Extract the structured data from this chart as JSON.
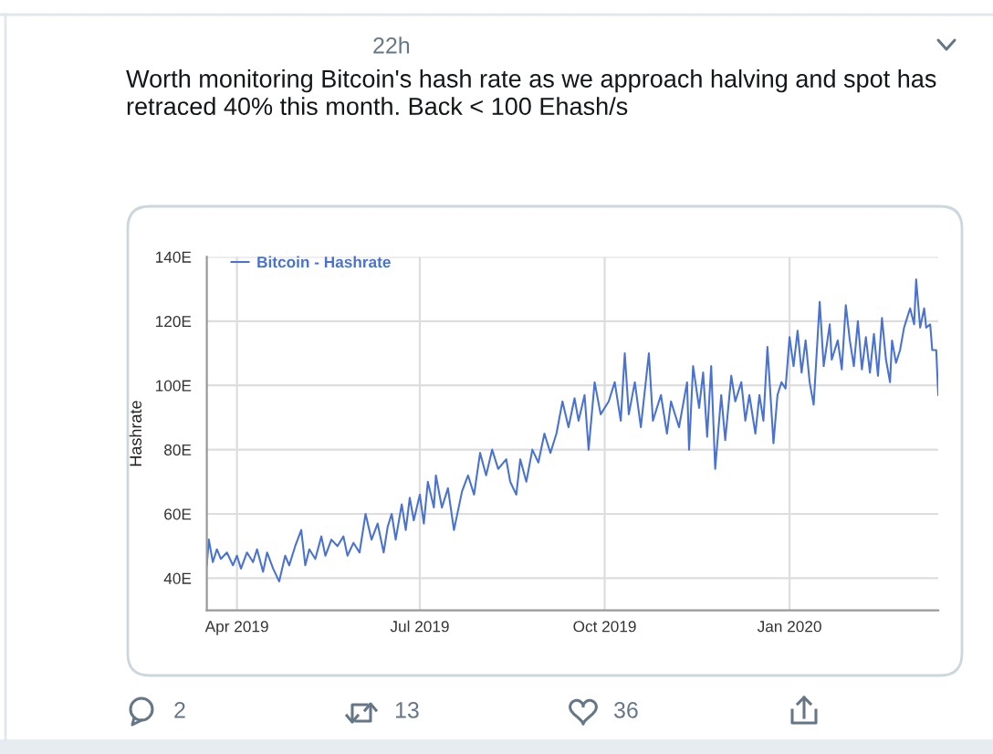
{
  "chart_data": {
    "type": "line",
    "title": "Worth monitoring Bitcoin's hash rate as we approach halving and spot has retraced 40% this month. Back < 100 Ehash/s",
    "ylabel": "Hashrate",
    "annotations": [
      "22h",
      "2",
      "13",
      "36"
    ],
    "legend": "top left",
    "grid": true,
    "xlim": [
      "2019-03-17",
      "2020-03-15"
    ],
    "xticks": [
      {
        "value": "2019-04-01",
        "label": "Apr 2019"
      },
      {
        "value": "2019-07-01",
        "label": "Jul 2019"
      },
      {
        "value": "2019-10-01",
        "label": "Oct 2019"
      },
      {
        "value": "2020-01-01",
        "label": "Jan 2020"
      }
    ],
    "ylim": [
      30,
      140
    ],
    "yticks": [
      {
        "value": 40,
        "label": "40E"
      },
      {
        "value": 60,
        "label": "60E"
      },
      {
        "value": 80,
        "label": "80E"
      },
      {
        "value": 100,
        "label": "100E"
      },
      {
        "value": 120,
        "label": "120E"
      },
      {
        "value": 140,
        "label": "140E"
      }
    ],
    "x": [
      "2019-03-17",
      "2019-03-18",
      "2019-03-20",
      "2019-03-22",
      "2019-03-24",
      "2019-03-27",
      "2019-03-30",
      "2019-04-01",
      "2019-04-03",
      "2019-04-06",
      "2019-04-09",
      "2019-04-11",
      "2019-04-14",
      "2019-04-16",
      "2019-04-19",
      "2019-04-22",
      "2019-04-25",
      "2019-04-27",
      "2019-04-30",
      "2019-05-03",
      "2019-05-05",
      "2019-05-07",
      "2019-05-10",
      "2019-05-13",
      "2019-05-15",
      "2019-05-18",
      "2019-05-21",
      "2019-05-24",
      "2019-05-26",
      "2019-05-29",
      "2019-06-01",
      "2019-06-04",
      "2019-06-07",
      "2019-06-10",
      "2019-06-13",
      "2019-06-15",
      "2019-06-17",
      "2019-06-19",
      "2019-06-22",
      "2019-06-24",
      "2019-06-26",
      "2019-06-28",
      "2019-07-01",
      "2019-07-03",
      "2019-07-05",
      "2019-07-08",
      "2019-07-09",
      "2019-07-12",
      "2019-07-15",
      "2019-07-18",
      "2019-07-22",
      "2019-07-25",
      "2019-07-28",
      "2019-07-31",
      "2019-08-03",
      "2019-08-06",
      "2019-08-09",
      "2019-08-13",
      "2019-08-15",
      "2019-08-18",
      "2019-08-20",
      "2019-08-23",
      "2019-08-26",
      "2019-08-29",
      "2019-09-01",
      "2019-09-04",
      "2019-09-07",
      "2019-09-10",
      "2019-09-13",
      "2019-09-16",
      "2019-09-18",
      "2019-09-21",
      "2019-09-23",
      "2019-09-26",
      "2019-09-29",
      "2019-10-03",
      "2019-10-06",
      "2019-10-09",
      "2019-10-11",
      "2019-10-13",
      "2019-10-16",
      "2019-10-19",
      "2019-10-23",
      "2019-10-25",
      "2019-10-29",
      "2019-11-01",
      "2019-11-03",
      "2019-11-07",
      "2019-11-11",
      "2019-11-12",
      "2019-11-14",
      "2019-11-17",
      "2019-11-19",
      "2019-11-21",
      "2019-11-23",
      "2019-11-25",
      "2019-11-28",
      "2019-11-30",
      "2019-12-03",
      "2019-12-05",
      "2019-12-08",
      "2019-12-10",
      "2019-12-12",
      "2019-12-15",
      "2019-12-17",
      "2019-12-19",
      "2019-12-21",
      "2019-12-24",
      "2019-12-26",
      "2019-12-28",
      "2019-12-30",
      "2020-01-01",
      "2020-01-03",
      "2020-01-05",
      "2020-01-07",
      "2020-01-09",
      "2020-01-11",
      "2020-01-13",
      "2020-01-16",
      "2020-01-18",
      "2020-01-21",
      "2020-01-22",
      "2020-01-25",
      "2020-01-27",
      "2020-01-29",
      "2020-01-31",
      "2020-02-02",
      "2020-02-04",
      "2020-02-06",
      "2020-02-08",
      "2020-02-10",
      "2020-02-12",
      "2020-02-14",
      "2020-02-16",
      "2020-02-18",
      "2020-02-20",
      "2020-02-21",
      "2020-02-23",
      "2020-02-25",
      "2020-02-27",
      "2020-03-01",
      "2020-03-03",
      "2020-03-04",
      "2020-03-06",
      "2020-03-08",
      "2020-03-09",
      "2020-03-11",
      "2020-03-12",
      "2020-03-14",
      "2020-03-15"
    ],
    "series": [
      {
        "name": "Bitcoin - Hashrate",
        "color": "#4a73d1",
        "values": [
          44,
          52,
          45,
          49,
          46,
          48,
          44,
          47,
          43,
          48,
          45,
          49,
          42,
          48,
          43,
          39,
          47,
          44,
          50,
          55,
          44,
          49,
          46,
          53,
          47,
          52,
          50,
          53,
          47,
          51,
          48,
          60,
          52,
          57,
          48,
          56,
          60,
          52,
          63,
          55,
          65,
          58,
          66,
          57,
          70,
          62,
          72,
          62,
          68,
          55,
          67,
          72,
          66,
          79,
          72,
          80,
          74,
          77,
          70,
          66,
          77,
          70,
          80,
          76,
          85,
          79,
          85,
          95,
          87,
          96,
          89,
          97,
          80,
          101,
          91,
          95,
          101,
          89,
          110,
          91,
          101,
          87,
          110,
          89,
          97,
          85,
          95,
          87,
          101,
          80,
          106,
          93,
          104,
          84,
          106,
          74,
          97,
          83,
          103,
          95,
          101,
          89,
          97,
          85,
          97,
          89,
          112,
          82,
          97,
          101,
          99,
          115,
          106,
          117,
          104,
          114,
          101,
          94,
          126,
          106,
          119,
          108,
          114,
          105,
          125,
          114,
          106,
          120,
          105,
          115,
          104,
          116,
          103,
          121,
          108,
          101,
          114,
          107,
          111,
          118,
          124,
          119,
          133,
          118,
          124,
          118,
          119,
          111,
          111,
          97
        ]
      }
    ]
  }
}
